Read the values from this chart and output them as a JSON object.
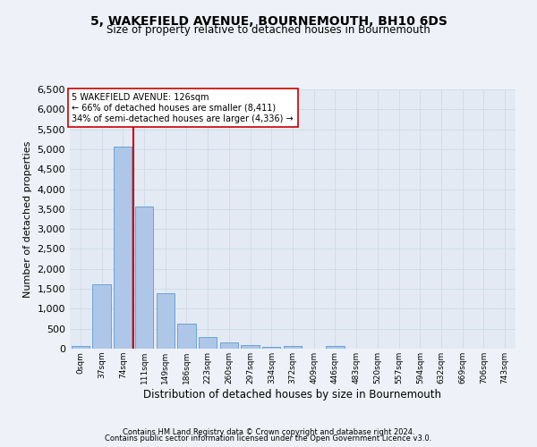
{
  "title": "5, WAKEFIELD AVENUE, BOURNEMOUTH, BH10 6DS",
  "subtitle": "Size of property relative to detached houses in Bournemouth",
  "xlabel": "Distribution of detached houses by size in Bournemouth",
  "ylabel": "Number of detached properties",
  "footer_line1": "Contains HM Land Registry data © Crown copyright and database right 2024.",
  "footer_line2": "Contains public sector information licensed under the Open Government Licence v3.0.",
  "bin_labels": [
    "0sqm",
    "37sqm",
    "74sqm",
    "111sqm",
    "149sqm",
    "186sqm",
    "223sqm",
    "260sqm",
    "297sqm",
    "334sqm",
    "372sqm",
    "409sqm",
    "446sqm",
    "483sqm",
    "520sqm",
    "557sqm",
    "594sqm",
    "632sqm",
    "669sqm",
    "706sqm",
    "743sqm"
  ],
  "bar_values": [
    75,
    1625,
    5075,
    3575,
    1400,
    625,
    300,
    150,
    90,
    55,
    60,
    0,
    60,
    0,
    0,
    0,
    0,
    0,
    0,
    0,
    0
  ],
  "bar_color": "#aec6e8",
  "bar_edge_color": "#5b9bd5",
  "grid_color": "#d0dce8",
  "vline_x_pos": 2.5,
  "vline_color": "#cc0000",
  "annotation_text": "5 WAKEFIELD AVENUE: 126sqm\n← 66% of detached houses are smaller (8,411)\n34% of semi-detached houses are larger (4,336) →",
  "annotation_box_color": "#ffffff",
  "annotation_box_edge": "#cc0000",
  "ylim": [
    0,
    6500
  ],
  "yticks": [
    0,
    500,
    1000,
    1500,
    2000,
    2500,
    3000,
    3500,
    4000,
    4500,
    5000,
    5500,
    6000,
    6500
  ],
  "bg_color": "#eef2f8",
  "plot_bg_color": "#e4eaf4",
  "title_fontsize": 10,
  "subtitle_fontsize": 8.5,
  "ylabel_fontsize": 8,
  "xlabel_fontsize": 8.5,
  "footer_fontsize": 6,
  "ytick_fontsize": 8,
  "xtick_fontsize": 6.5,
  "annotation_fontsize": 7
}
